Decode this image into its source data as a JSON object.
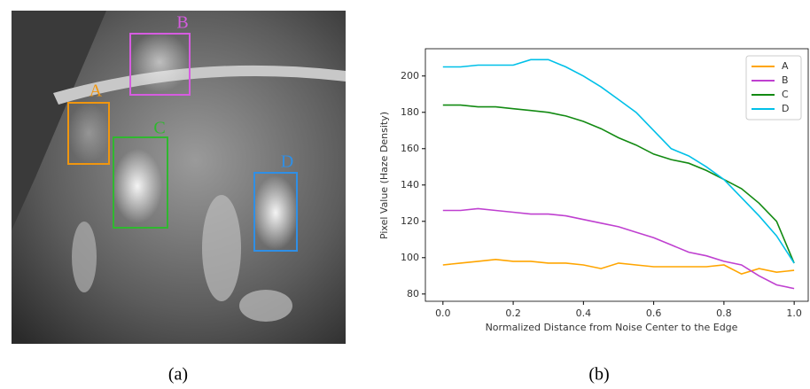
{
  "photo": {
    "boxes": [
      {
        "label": "A",
        "color": "#f0960f"
      },
      {
        "label": "B",
        "color": "#d65ce0"
      },
      {
        "label": "C",
        "color": "#2fb82f"
      },
      {
        "label": "D",
        "color": "#2f8fe6"
      }
    ],
    "caption": "(a)"
  },
  "chart_caption": "(b)",
  "chart_data": {
    "type": "line",
    "x_label": "Normalized Distance from Noise Center to the Edge",
    "y_label": "Pixel Value (Haze Density)",
    "x": [
      0,
      0.05,
      0.1,
      0.15,
      0.2,
      0.25,
      0.3,
      0.35,
      0.4,
      0.45,
      0.5,
      0.55,
      0.6,
      0.65,
      0.7,
      0.75,
      0.8,
      0.85,
      0.9,
      0.95,
      1.0
    ],
    "series": [
      {
        "name": "A",
        "color": "#ffa500",
        "values": [
          96,
          97,
          98,
          99,
          98,
          98,
          97,
          97,
          96,
          94,
          97,
          96,
          95,
          95,
          95,
          95,
          96,
          91,
          94,
          92,
          93
        ]
      },
      {
        "name": "B",
        "color": "#bf40d0",
        "values": [
          126,
          126,
          127,
          126,
          125,
          124,
          124,
          123,
          121,
          119,
          117,
          114,
          111,
          107,
          103,
          101,
          98,
          96,
          90,
          85,
          83
        ]
      },
      {
        "name": "C",
        "color": "#128a12",
        "values": [
          184,
          184,
          183,
          183,
          182,
          181,
          180,
          178,
          175,
          171,
          166,
          162,
          157,
          154,
          152,
          148,
          143,
          138,
          130,
          120,
          97
        ]
      },
      {
        "name": "D",
        "color": "#00c0e8",
        "values": [
          205,
          205,
          206,
          206,
          206,
          209,
          209,
          205,
          200,
          194,
          187,
          180,
          170,
          160,
          156,
          150,
          143,
          133,
          123,
          112,
          97
        ]
      }
    ],
    "xlim": [
      -0.05,
      1.04
    ],
    "ylim": [
      76,
      215
    ],
    "xticks": [
      {
        "value": 0,
        "label": "0.0"
      },
      0.2,
      0.4,
      0.6,
      0.8,
      {
        "value": 1,
        "label": "1.0"
      }
    ],
    "yticks": [
      80,
      100,
      120,
      140,
      160,
      180,
      200
    ],
    "legend": "upper right"
  }
}
